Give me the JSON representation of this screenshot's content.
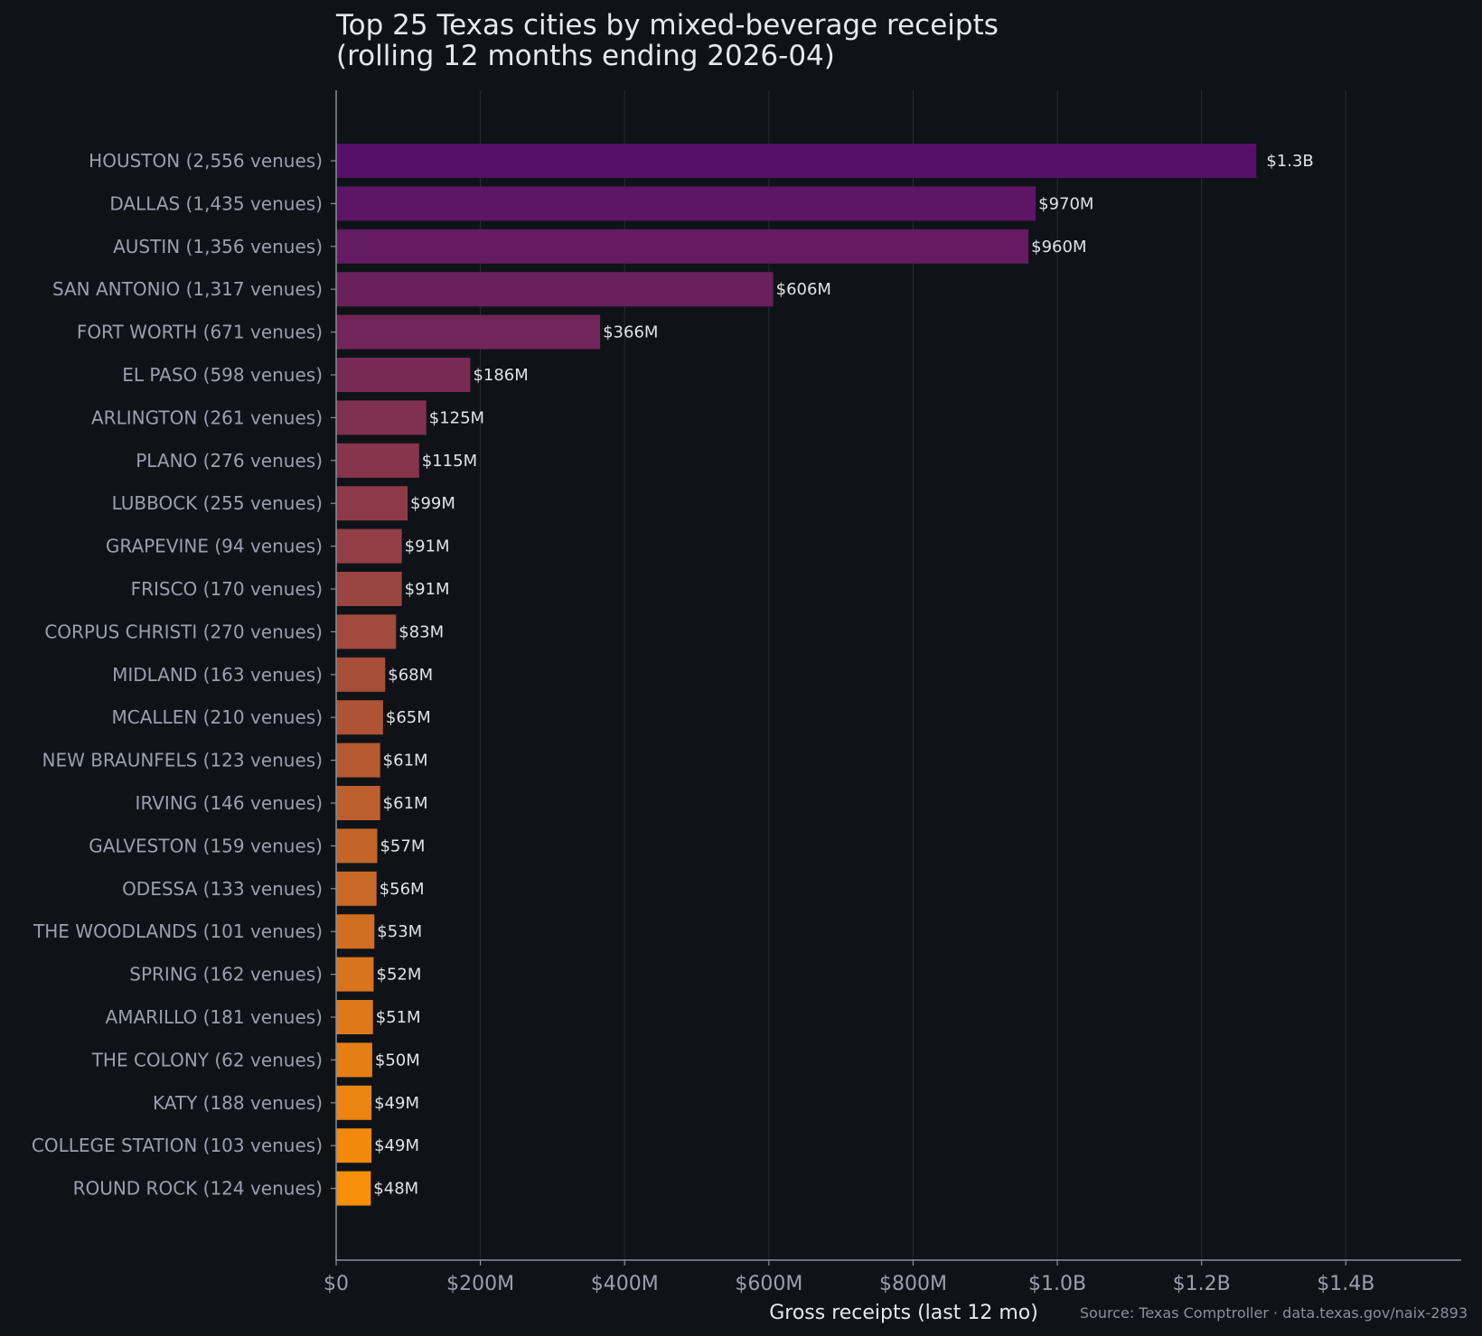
{
  "chart_data": {
    "type": "bar",
    "orientation": "horizontal",
    "title_lines": [
      "Top 25 Texas cities by mixed-beverage receipts",
      "(rolling 12 months ending 2026-04)"
    ],
    "xlabel": "Gross receipts (last 12 mo)",
    "source": "Source: Texas Comptroller · data.texas.gov/naix-2893",
    "xlim": [
      0,
      1560000000
    ],
    "xticks": [
      {
        "value": 0,
        "label": "$0"
      },
      {
        "value": 200000000,
        "label": "$200M"
      },
      {
        "value": 400000000,
        "label": "$400M"
      },
      {
        "value": 600000000,
        "label": "$600M"
      },
      {
        "value": 800000000,
        "label": "$800M"
      },
      {
        "value": 1000000000,
        "label": "$1.0B"
      },
      {
        "value": 1200000000,
        "label": "$1.2B"
      },
      {
        "value": 1400000000,
        "label": "$1.4B"
      }
    ],
    "grid": "vertical",
    "categories": [
      "HOUSTON  (2,556 venues)",
      "DALLAS  (1,435 venues)",
      "AUSTIN  (1,356 venues)",
      "SAN ANTONIO  (1,317 venues)",
      "FORT WORTH  (671 venues)",
      "EL PASO  (598 venues)",
      "ARLINGTON  (261 venues)",
      "PLANO  (276 venues)",
      "LUBBOCK  (255 venues)",
      "GRAPEVINE  (94 venues)",
      "FRISCO  (170 venues)",
      "CORPUS CHRISTI  (270 venues)",
      "MIDLAND  (163 venues)",
      "MCALLEN  (210 venues)",
      "NEW BRAUNFELS  (123 venues)",
      "IRVING  (146 venues)",
      "GALVESTON  (159 venues)",
      "ODESSA  (133 venues)",
      "THE WOODLANDS  (101 venues)",
      "SPRING  (162 venues)",
      "AMARILLO  (181 venues)",
      "THE COLONY  (62 venues)",
      "KATY  (188 venues)",
      "COLLEGE STATION  (103 venues)",
      "ROUND ROCK  (124 venues)"
    ],
    "values": [
      1276000000,
      970000000,
      960000000,
      606000000,
      366000000,
      186000000,
      125000000,
      115000000,
      99000000,
      91000000,
      91000000,
      83000000,
      68000000,
      65000000,
      61000000,
      61000000,
      57000000,
      56000000,
      53000000,
      52000000,
      51000000,
      50000000,
      49000000,
      49000000,
      48000000
    ],
    "value_labels": [
      "$1.3B",
      "$970M",
      "$960M",
      "$606M",
      "$366M",
      "$186M",
      "$125M",
      "$115M",
      "$99M",
      "$91M",
      "$91M",
      "$83M",
      "$68M",
      "$65M",
      "$61M",
      "$61M",
      "$57M",
      "$56M",
      "$53M",
      "$52M",
      "$51M",
      "$50M",
      "$49M",
      "$49M",
      "$48M"
    ],
    "colors": {
      "background": "#0f1318",
      "axis": "#8a9099",
      "grid": "#262b33",
      "gradient_start": "#561069",
      "gradient_end": "#f98e09"
    }
  }
}
